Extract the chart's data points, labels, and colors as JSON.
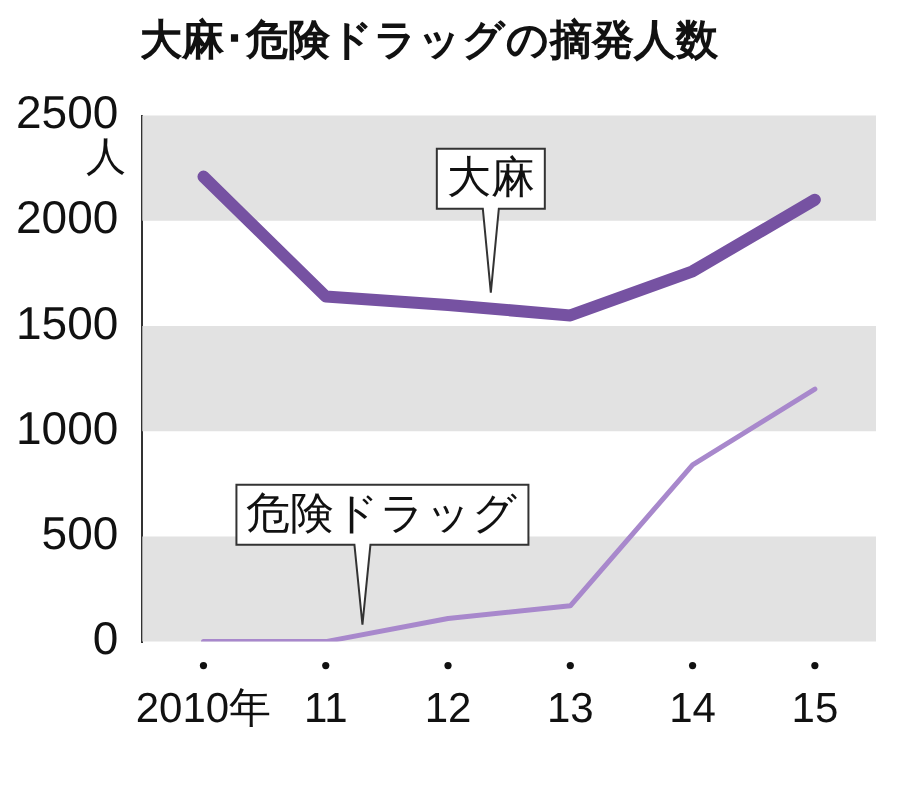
{
  "chart_data": {
    "type": "line",
    "title": "大麻･危険ドラッグの摘発人数",
    "ylabel": "人",
    "categories": [
      "2010年",
      "11",
      "12",
      "13",
      "14",
      "15"
    ],
    "series": [
      {
        "name": "大麻",
        "color": "#7652a2",
        "values": [
          2210,
          1640,
          1600,
          1550,
          1760,
          2100
        ]
      },
      {
        "name": "危険ドラッグ",
        "color": "#a888cc",
        "values": [
          0,
          0,
          110,
          170,
          840,
          1200
        ]
      }
    ],
    "ylim": [
      0,
      2500
    ],
    "yticks": [
      0,
      500,
      1000,
      1500,
      2000,
      2500
    ],
    "bands": [
      {
        "axis": "y",
        "from": 0,
        "to": 500,
        "color": "#e2e2e2"
      },
      {
        "axis": "y",
        "from": 1000,
        "to": 1500,
        "color": "#e2e2e2"
      },
      {
        "axis": "y",
        "from": 2000,
        "to": 2500,
        "color": "#e2e2e2"
      }
    ],
    "grid": false,
    "legend": false,
    "marker": "none",
    "line_style": "solid"
  }
}
